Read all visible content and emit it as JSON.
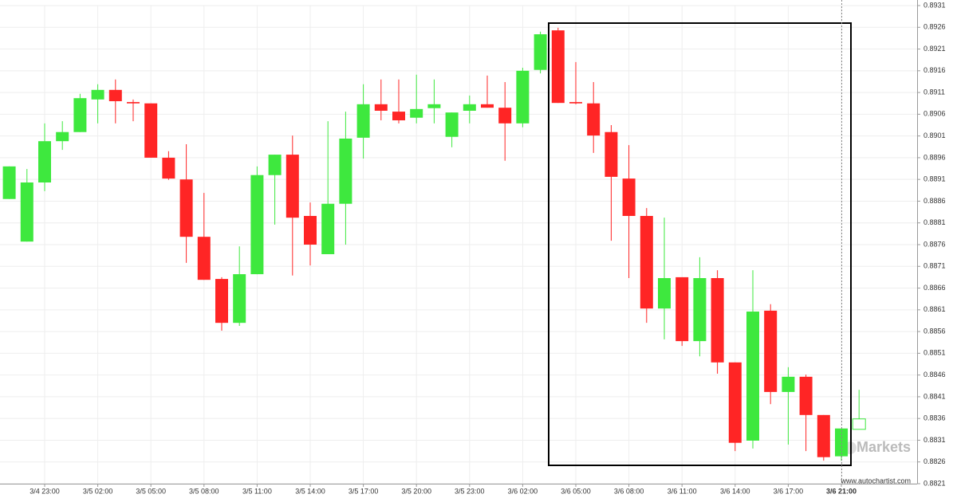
{
  "chart_data": {
    "type": "candlestick",
    "categories": [
      null,
      null,
      "3/4 23:00",
      null,
      null,
      "3/5 02:00",
      null,
      null,
      "3/5 05:00",
      null,
      null,
      "3/5 08:00",
      null,
      null,
      "3/5 11:00",
      null,
      null,
      "3/5 14:00",
      null,
      null,
      "3/5 17:00",
      null,
      null,
      "3/5 20:00",
      null,
      null,
      "3/5 23:00",
      null,
      null,
      "3/6 02:00",
      null,
      null,
      "3/6 05:00",
      null,
      null,
      "3/6 08:00",
      null,
      null,
      "3/6 11:00",
      null,
      null,
      "3/6 14:00",
      null,
      null,
      "3/6 17:00",
      null,
      null,
      "3/6 21:00",
      null
    ],
    "open": [
      0.88865,
      0.88767,
      0.88903,
      0.88998,
      0.89019,
      0.89094,
      0.89116,
      0.89088,
      0.89085,
      0.8896,
      0.8891,
      0.88778,
      0.88681,
      0.8858,
      0.88692,
      0.8892,
      0.88967,
      0.88826,
      0.88738,
      0.88854,
      0.89006,
      0.89083,
      0.89066,
      0.89052,
      0.89074,
      0.89008,
      0.89068,
      0.89083,
      0.89075,
      0.89039,
      0.89162,
      0.89253,
      0.89088,
      0.89085,
      0.89019,
      0.88912,
      0.88826,
      0.88613,
      0.88685,
      0.88538,
      0.88683,
      0.88489,
      0.88309,
      0.88608,
      0.88421,
      0.88456,
      0.88368,
      0.88273,
      0.88335
    ],
    "high": [
      0.8894,
      0.88934,
      0.89039,
      0.89044,
      0.89107,
      0.89129,
      0.8914,
      0.89094,
      0.89085,
      0.88975,
      0.88991,
      0.88879,
      0.88685,
      0.88756,
      0.8894,
      0.88967,
      0.89011,
      0.88857,
      0.89044,
      0.89066,
      0.89129,
      0.8914,
      0.8914,
      0.89151,
      0.8914,
      0.89064,
      0.89103,
      0.89149,
      0.89134,
      0.89167,
      0.8925,
      0.89259,
      0.8918,
      0.89134,
      0.89035,
      0.88989,
      0.88844,
      0.88822,
      0.88685,
      0.88731,
      0.88701,
      0.88489,
      0.88701,
      0.88623,
      0.88478,
      0.88461,
      0.88368,
      0.88337,
      0.88426
    ],
    "low": [
      0.88865,
      0.88767,
      0.88883,
      0.88978,
      0.89019,
      0.89039,
      0.89039,
      0.89044,
      0.8896,
      0.88909,
      0.88718,
      0.88679,
      0.88562,
      0.88573,
      0.88692,
      0.88806,
      0.88689,
      0.88712,
      0.88738,
      0.8876,
      0.88958,
      0.89046,
      0.89039,
      0.89039,
      0.89039,
      0.88984,
      0.89039,
      0.89075,
      0.88953,
      0.8903,
      0.89154,
      0.89086,
      0.89083,
      0.88971,
      0.88769,
      0.88683,
      0.8858,
      0.88542,
      0.88527,
      0.88503,
      0.88463,
      0.88285,
      0.88291,
      0.88393,
      0.883,
      0.88285,
      0.88263,
      0.88263,
      0.88335
    ],
    "close": [
      0.8894,
      0.88903,
      0.88998,
      0.89019,
      0.89097,
      0.89116,
      0.8909,
      0.89085,
      0.8896,
      0.88912,
      0.88778,
      0.88679,
      0.8858,
      0.88692,
      0.8892,
      0.88967,
      0.88822,
      0.8876,
      0.88854,
      0.89004,
      0.89083,
      0.89068,
      0.89046,
      0.89072,
      0.89083,
      0.89064,
      0.89083,
      0.89075,
      0.89039,
      0.8916,
      0.89244,
      0.89086,
      0.89085,
      0.89011,
      0.88916,
      0.88826,
      0.88613,
      0.88683,
      0.88538,
      0.88683,
      0.88489,
      0.88304,
      0.88606,
      0.88421,
      0.88456,
      0.88368,
      0.88271,
      0.88337,
      0.88359
    ],
    "up_color": "#3ee83e",
    "down_color": "#ff2525",
    "last_candle_hollow": true,
    "ylim": [
      0.8821,
      0.8931
    ],
    "yticks": [
      0.8821,
      0.8826,
      0.8831,
      0.8836,
      0.8841,
      0.8846,
      0.8851,
      0.8856,
      0.8861,
      0.8866,
      0.8871,
      0.8876,
      0.8881,
      0.8886,
      0.8891,
      0.8896,
      0.8901,
      0.8906,
      0.8911,
      0.8916,
      0.8921,
      0.8926,
      0.8931
    ],
    "grid": true,
    "watermark": "Markets",
    "source": "www.autochartist.com"
  }
}
